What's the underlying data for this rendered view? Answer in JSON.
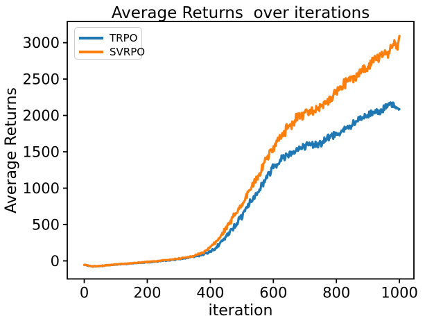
{
  "chart_data": {
    "type": "line",
    "title": "Average Returns  over iterations",
    "xlabel": "iteration",
    "ylabel": "Average Returns",
    "xlim": [
      -54,
      1046
    ],
    "ylim": [
      -248,
      3292
    ],
    "x_ticks": [
      0,
      200,
      400,
      600,
      800,
      1000
    ],
    "y_ticks": [
      0,
      500,
      1000,
      1500,
      2000,
      2500,
      3000
    ],
    "grid": false,
    "legend_position": "upper left",
    "anchor_x": [
      0,
      25,
      50,
      75,
      100,
      125,
      150,
      175,
      200,
      225,
      250,
      275,
      300,
      325,
      350,
      375,
      400,
      425,
      450,
      475,
      500,
      525,
      550,
      575,
      600,
      625,
      650,
      675,
      700,
      725,
      750,
      775,
      800,
      825,
      850,
      875,
      900,
      925,
      950,
      975,
      1000
    ],
    "series": [
      {
        "name": "TRPO",
        "color": "#1f77b4",
        "values": [
          -55,
          -76,
          -72,
          -60,
          -50,
          -43,
          -35,
          -27,
          -18,
          -10,
          0,
          12,
          25,
          42,
          60,
          85,
          130,
          210,
          330,
          470,
          620,
          800,
          950,
          1120,
          1300,
          1400,
          1480,
          1530,
          1570,
          1600,
          1620,
          1690,
          1750,
          1800,
          1860,
          1950,
          2000,
          2060,
          2090,
          2150,
          2070
        ]
      },
      {
        "name": "SVRPO",
        "color": "#ff7f0e",
        "values": [
          -55,
          -75,
          -70,
          -58,
          -48,
          -40,
          -32,
          -24,
          -15,
          -5,
          8,
          18,
          30,
          48,
          70,
          110,
          185,
          300,
          450,
          610,
          780,
          980,
          1150,
          1380,
          1570,
          1720,
          1850,
          1950,
          2040,
          2060,
          2120,
          2200,
          2320,
          2420,
          2500,
          2570,
          2680,
          2770,
          2830,
          2900,
          3020
        ]
      }
    ],
    "noise_band": {
      "x": [
        0,
        100,
        200,
        300,
        350,
        400,
        450,
        500,
        550,
        600,
        700,
        800,
        900,
        1000
      ],
      "TRPO": [
        6,
        6,
        7,
        8,
        10,
        20,
        40,
        55,
        65,
        70,
        65,
        65,
        65,
        65
      ],
      "SVRPO": [
        6,
        6,
        7,
        8,
        12,
        25,
        45,
        60,
        70,
        85,
        85,
        90,
        95,
        95
      ]
    }
  }
}
